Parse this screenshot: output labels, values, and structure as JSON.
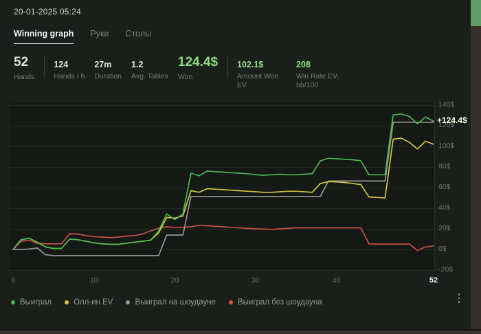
{
  "window": {
    "datetime": "20-01-2025 05:24"
  },
  "tabs": [
    {
      "label": "Winning graph",
      "active": true
    },
    {
      "label": "Руки",
      "active": false
    },
    {
      "label": "Столы",
      "active": false
    }
  ],
  "stats": [
    {
      "value": "52",
      "label": "Hands",
      "big": true,
      "green": false,
      "divider_after": true,
      "w": "hands"
    },
    {
      "value": "124",
      "label": "Hands / h"
    },
    {
      "value": "27m",
      "label": "Duration"
    },
    {
      "value": "1.2",
      "label": "Avg. Tables"
    },
    {
      "value": "124.4$",
      "label": "Won",
      "big": true,
      "green": true,
      "divider_after": true
    },
    {
      "value": "102.1$",
      "label": "Amount Won EV",
      "green": true,
      "w": "amount"
    },
    {
      "value": "208",
      "label": "Win Rate EV, bb/100",
      "green": true,
      "w": "rate"
    }
  ],
  "chart_data": {
    "type": "line",
    "title": "Winning graph",
    "xlabel": "Hands",
    "ylabel": "$",
    "xlim": [
      0,
      52
    ],
    "ylim": [
      -21,
      142
    ],
    "grid": "horizontal",
    "y_ticks": [
      140,
      120,
      100,
      80,
      60,
      40,
      20,
      0,
      -20
    ],
    "y_tick_suffix": "$",
    "x_ticks": [
      {
        "label": "0",
        "value": 0
      },
      {
        "label": "10",
        "value": 10
      },
      {
        "label": "20",
        "value": 20
      },
      {
        "label": "30",
        "value": 30
      },
      {
        "label": "40",
        "value": 40
      },
      {
        "label": "52",
        "value": 52,
        "highlight": true
      }
    ],
    "end_label": {
      "text": "+124.4$",
      "value": 124.4
    },
    "series": [
      {
        "name": "Выиграл на шоудауне",
        "color": "#969696",
        "values": [
          0,
          0,
          0.5,
          1.5,
          -5,
          -6,
          -6,
          -6,
          -6,
          -6,
          -6,
          -6,
          -6,
          -6,
          -6,
          -6,
          -6,
          -6,
          -6,
          14,
          14,
          14,
          51.5,
          51.5,
          51.5,
          51.5,
          51.5,
          51.5,
          51.5,
          51.5,
          51.5,
          51.5,
          51.5,
          51.5,
          51.5,
          51.5,
          51.5,
          51.5,
          51.5,
          66.4,
          66.4,
          66.4,
          66.4,
          66.4,
          66.4,
          66.4,
          66.4,
          123.5,
          123.5,
          123.5,
          123.5,
          123.5,
          123.5
        ]
      },
      {
        "name": "Выиграл без шоудауна",
        "color": "#c95047",
        "values": [
          0,
          8,
          9,
          6,
          5.5,
          5.5,
          5.5,
          15.3,
          15,
          13.5,
          12.5,
          12,
          11.5,
          12,
          13,
          13.5,
          15,
          18,
          20.5,
          22,
          21.5,
          21.5,
          22,
          23.5,
          23,
          22.5,
          22,
          21.5,
          21,
          20.5,
          20,
          19.8,
          19.5,
          20,
          20.5,
          21,
          21,
          21,
          21,
          21,
          21,
          21,
          21,
          21,
          5.5,
          5.3,
          5.3,
          5.3,
          5.3,
          5.3,
          -1,
          2.5,
          3.5
        ]
      },
      {
        "name": "Олл-ин EV",
        "color": "#d2c53c",
        "values": [
          0,
          9.5,
          11,
          7,
          2.5,
          1,
          1,
          10,
          9.5,
          8,
          6.5,
          5.5,
          5,
          5,
          6,
          7,
          8,
          9,
          16,
          31,
          30.5,
          32.5,
          57,
          55.5,
          59,
          58.5,
          58,
          57.5,
          57,
          56.5,
          56,
          55.5,
          55.5,
          56,
          56.5,
          56.5,
          56,
          55.5,
          64,
          65.8,
          65.5,
          65,
          64,
          63,
          51,
          50.5,
          50,
          107,
          108,
          104,
          97.5,
          105,
          102.1
        ]
      },
      {
        "name": "Выиграл",
        "color": "#4cb84f",
        "values": [
          0,
          9.5,
          11,
          7,
          2.5,
          1,
          1,
          10,
          9.5,
          8,
          6.5,
          5.5,
          5,
          5,
          6,
          7,
          8,
          9,
          18,
          34.5,
          29,
          34.5,
          74,
          71.5,
          76,
          75.5,
          75,
          74.5,
          74,
          73.5,
          72.5,
          72,
          72.5,
          73,
          72.5,
          72.5,
          73,
          73.5,
          86,
          88.5,
          88,
          87.5,
          87,
          86,
          72.5,
          72.5,
          72.5,
          130.5,
          131.5,
          129,
          122,
          128.5,
          124.4
        ]
      }
    ],
    "legend_position": "bottom"
  },
  "legend": [
    {
      "label": "Выиграл",
      "color": "#4db253"
    },
    {
      "label": "Олл-ин EV",
      "color": "#d0c53e"
    },
    {
      "label": "Выиграл на шоудауне",
      "color": "#9e9e9e"
    },
    {
      "label": "Выиграл без шоудауна",
      "color": "#e05149"
    }
  ]
}
